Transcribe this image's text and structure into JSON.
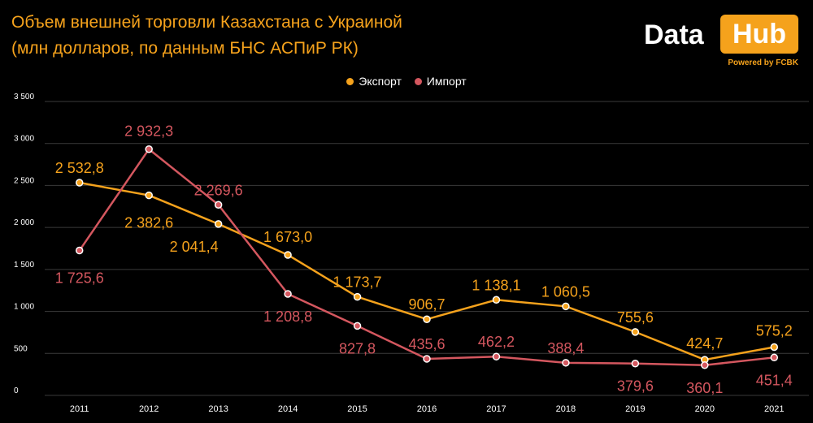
{
  "header": {
    "title_line1": "Объем внешней торговли Казахстана с Украиной",
    "title_line2": "(млн долларов, по данным БНС АСПиР РК)"
  },
  "logo": {
    "part1": "Data",
    "part2": "Hub",
    "tagline": "Powered by FCBK",
    "accent": "#f5a21c"
  },
  "chart_data": {
    "type": "line",
    "x": [
      "2011",
      "2012",
      "2013",
      "2014",
      "2015",
      "2016",
      "2017",
      "2018",
      "2019",
      "2020",
      "2021"
    ],
    "ylim": [
      0,
      3500
    ],
    "yticks": [
      "0",
      "500",
      "1 000",
      "1 500",
      "2 000",
      "2 500",
      "3 000",
      "3 500"
    ],
    "ytick_values": [
      0,
      500,
      1000,
      1500,
      2000,
      2500,
      3000,
      3500
    ],
    "grid": true,
    "legend": "top-center",
    "series": [
      {
        "name": "Экспорт",
        "color": "#f5a21c",
        "values": [
          2532.8,
          2382.6,
          2041.4,
          1673.0,
          1173.7,
          906.7,
          1138.1,
          1060.5,
          755.6,
          424.7,
          575.2
        ],
        "labels": [
          "2 532,8",
          "2 382,6",
          "2 041,4",
          "1 673,0",
          "1 173,7",
          "906,7",
          "1 138,1",
          "1 060,5",
          "755,6",
          "424,7",
          "575,2"
        ]
      },
      {
        "name": "Импорт",
        "color": "#d4575f",
        "values": [
          1725.6,
          2932.3,
          2269.6,
          1208.8,
          827.8,
          435.6,
          462.2,
          388.4,
          379.6,
          360.1,
          451.4
        ],
        "labels": [
          "1 725,6",
          "2 932,3",
          "2 269,6",
          "1 208,8",
          "827,8",
          "435,6",
          "462,2",
          "388,4",
          "379,6",
          "360,1",
          "451,4"
        ]
      }
    ]
  }
}
